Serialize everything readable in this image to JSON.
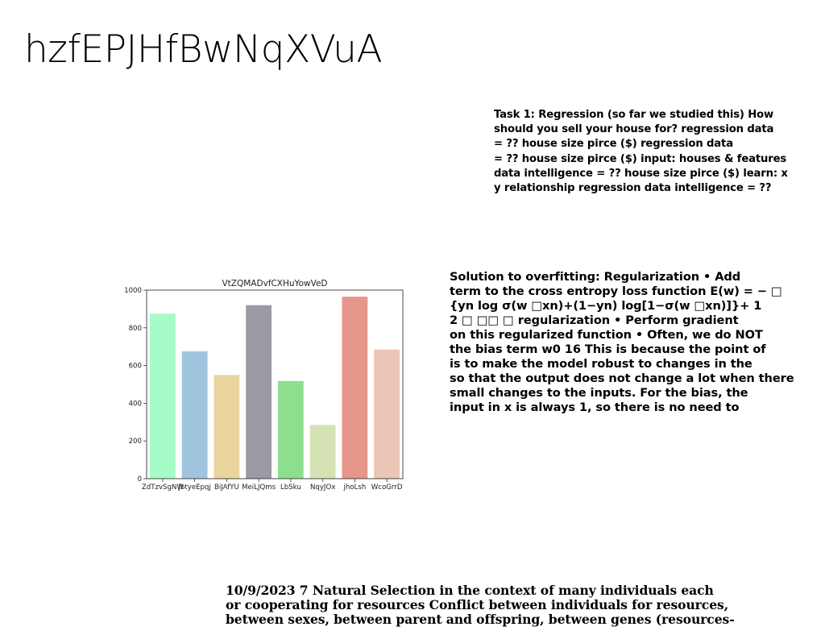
{
  "page": {
    "title": "hzfEPJHfBwNqXVuA"
  },
  "task1": {
    "lines": [
      "Task 1: Regression (so far we studied this) How",
      "should you sell your house for? regression data",
      "= ?? house size pirce ($) regression data",
      "= ?? house size pirce ($) input: houses & features",
      "data intelligence = ?? house size pirce ($) learn: x",
      "y relationship regression data intelligence = ??"
    ]
  },
  "overfitting": {
    "lines": [
      "Solution to overfitting: Regularization • Add",
      "term to the cross entropy loss function E(w) = − □",
      "{yn log σ(w □xn)+(1−yn) log[1−σ(w □xn)]}+ 1",
      "2 □ □□ □ regularization • Perform gradient",
      "on this regularized function • Often, we do NOT",
      "the bias term w0 16 This is because the point of",
      "is to make the model robust to changes in the",
      "so that the output does not change a lot when there",
      "small changes to the inputs. For the bias, the",
      "input in x is always 1, so there is no need to"
    ]
  },
  "natural_selection": {
    "lines": [
      "10/9/2023 7 Natural Selection in the context of many individuals each",
      "or cooperating for resources Conflict between individuals for resources,",
      "between sexes, between parent and offspring, between genes (resources-"
    ]
  },
  "chart_data": {
    "type": "bar",
    "title": "VtZQMADvfCXHuYowVeD",
    "xlabel": "",
    "ylabel": "",
    "categories": [
      "ZdTzvSgNW",
      "JbtyeEpqj",
      "BiJAfYU",
      "MeiLJQms",
      "LbSku",
      "NqyJOx",
      "jhoLsh",
      "WcoGrrD"
    ],
    "values": [
      875,
      675,
      550,
      920,
      518,
      285,
      965,
      685
    ],
    "colors": [
      "#a7fbc7",
      "#a0c4de",
      "#e9d59d",
      "#9a99a4",
      "#8ddf8e",
      "#d5e3b4",
      "#e5978b",
      "#ebc5b5"
    ],
    "ylim": [
      0,
      1000
    ],
    "yticks": [
      0,
      200,
      400,
      600,
      800,
      1000
    ],
    "grid": false,
    "legend": "none"
  }
}
